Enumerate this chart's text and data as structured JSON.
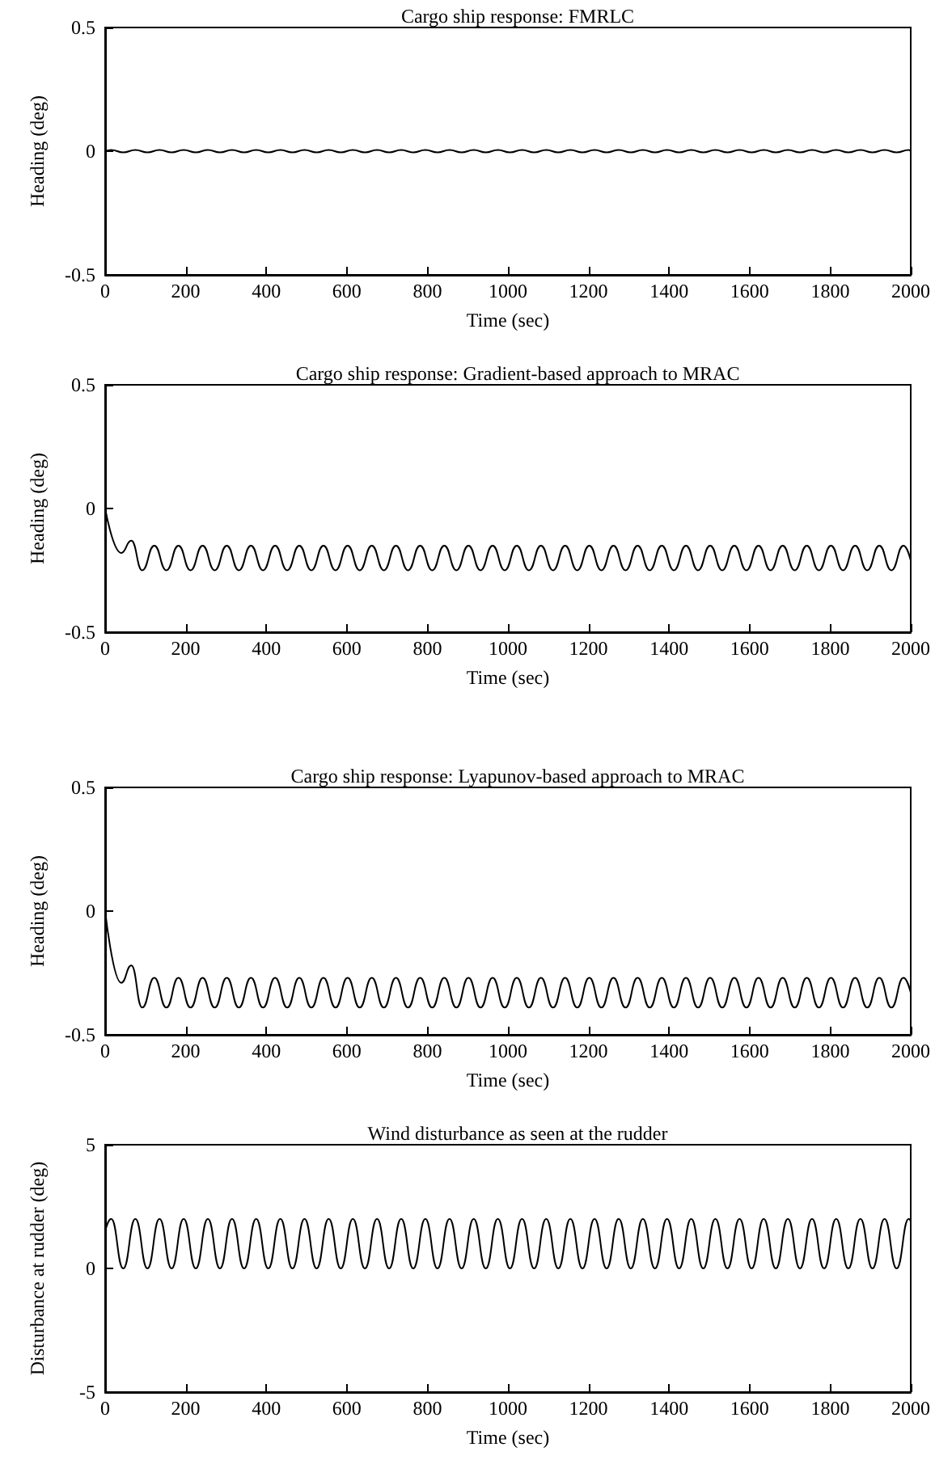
{
  "chart_data": [
    {
      "type": "line",
      "title": "Cargo ship response: FMRLC",
      "xlabel": "Time (sec)",
      "ylabel": "Heading (deg)",
      "color": "#000000",
      "marker": "none",
      "line_style": "solid",
      "x": [
        0,
        15,
        45,
        75,
        105,
        135,
        165,
        195,
        225,
        255,
        285,
        315,
        345,
        375,
        405,
        435,
        465,
        495,
        525,
        555,
        585,
        615,
        645,
        675,
        705,
        735,
        765,
        795,
        825,
        855,
        885,
        915,
        945,
        975,
        1005,
        1035,
        1065,
        1095,
        1125,
        1155,
        1185,
        1215,
        1245,
        1275,
        1305,
        1335,
        1365,
        1395,
        1425,
        1455,
        1485,
        1515,
        1545,
        1575,
        1605,
        1635,
        1665,
        1695,
        1725,
        1755,
        1785,
        1815,
        1845,
        1875,
        1905,
        1935,
        1965,
        1995,
        2000
      ],
      "values": [
        0,
        0.005,
        -0.005,
        0.005,
        -0.005,
        0.005,
        -0.005,
        0.005,
        -0.005,
        0.005,
        -0.005,
        0.005,
        -0.005,
        0.005,
        -0.005,
        0.005,
        -0.005,
        0.005,
        -0.005,
        0.005,
        -0.005,
        0.005,
        -0.005,
        0.005,
        -0.005,
        0.005,
        -0.005,
        0.005,
        -0.005,
        0.005,
        -0.005,
        0.005,
        -0.005,
        0.005,
        -0.005,
        0.005,
        -0.005,
        0.005,
        -0.005,
        0.005,
        -0.005,
        0.005,
        -0.005,
        0.005,
        -0.005,
        0.005,
        -0.005,
        0.005,
        -0.005,
        0.005,
        -0.005,
        0.005,
        -0.005,
        0.005,
        -0.005,
        0.005,
        -0.005,
        0.005,
        -0.005,
        0.005,
        -0.005,
        0.005,
        -0.005,
        0.005,
        -0.005,
        0.005,
        -0.005,
        0.005,
        0
      ],
      "xlim": [
        0,
        2000
      ],
      "xticks": [
        0,
        200,
        400,
        600,
        800,
        1000,
        1200,
        1400,
        1600,
        1800,
        2000
      ],
      "ylim": [
        -0.5,
        0.5
      ],
      "yticks": [
        -0.5,
        0,
        0.5
      ]
    },
    {
      "type": "line",
      "title": "Cargo ship response: Gradient-based approach to MRAC",
      "xlabel": "Time (sec)",
      "ylabel": "Heading (deg)",
      "color": "#000000",
      "marker": "none",
      "line_style": "solid",
      "x": [
        0,
        40,
        65,
        92,
        122,
        152,
        182,
        212,
        242,
        272,
        302,
        332,
        362,
        392,
        422,
        452,
        482,
        512,
        542,
        572,
        602,
        632,
        662,
        692,
        722,
        752,
        782,
        812,
        842,
        872,
        902,
        932,
        962,
        992,
        1022,
        1052,
        1082,
        1112,
        1142,
        1172,
        1202,
        1232,
        1262,
        1292,
        1322,
        1352,
        1382,
        1412,
        1442,
        1472,
        1502,
        1532,
        1562,
        1592,
        1622,
        1652,
        1682,
        1712,
        1742,
        1772,
        1802,
        1832,
        1862,
        1892,
        1922,
        1952,
        1982,
        2000
      ],
      "values": [
        0,
        -0.18,
        -0.13,
        -0.25,
        -0.15,
        -0.25,
        -0.15,
        -0.25,
        -0.15,
        -0.25,
        -0.15,
        -0.25,
        -0.15,
        -0.25,
        -0.15,
        -0.25,
        -0.15,
        -0.25,
        -0.15,
        -0.25,
        -0.15,
        -0.25,
        -0.15,
        -0.25,
        -0.15,
        -0.25,
        -0.15,
        -0.25,
        -0.15,
        -0.25,
        -0.15,
        -0.25,
        -0.15,
        -0.25,
        -0.15,
        -0.25,
        -0.15,
        -0.25,
        -0.15,
        -0.25,
        -0.15,
        -0.25,
        -0.15,
        -0.25,
        -0.15,
        -0.25,
        -0.15,
        -0.25,
        -0.15,
        -0.25,
        -0.15,
        -0.25,
        -0.15,
        -0.25,
        -0.15,
        -0.25,
        -0.15,
        -0.25,
        -0.15,
        -0.25,
        -0.15,
        -0.25,
        -0.15,
        -0.25,
        -0.15,
        -0.25,
        -0.15,
        -0.21
      ],
      "xlim": [
        0,
        2000
      ],
      "xticks": [
        0,
        200,
        400,
        600,
        800,
        1000,
        1200,
        1400,
        1600,
        1800,
        2000
      ],
      "ylim": [
        -0.5,
        0.5
      ],
      "yticks": [
        -0.5,
        0,
        0.5
      ]
    },
    {
      "type": "line",
      "title": "Cargo ship response: Lyapunov-based approach to MRAC",
      "xlabel": "Time (sec)",
      "ylabel": "Heading (deg)",
      "color": "#000000",
      "marker": "none",
      "line_style": "solid",
      "x": [
        0,
        40,
        65,
        92,
        122,
        152,
        182,
        212,
        242,
        272,
        302,
        332,
        362,
        392,
        422,
        452,
        482,
        512,
        542,
        572,
        602,
        632,
        662,
        692,
        722,
        752,
        782,
        812,
        842,
        872,
        902,
        932,
        962,
        992,
        1022,
        1052,
        1082,
        1112,
        1142,
        1172,
        1202,
        1232,
        1262,
        1292,
        1322,
        1352,
        1382,
        1412,
        1442,
        1472,
        1502,
        1532,
        1562,
        1592,
        1622,
        1652,
        1682,
        1712,
        1742,
        1772,
        1802,
        1832,
        1862,
        1892,
        1922,
        1952,
        1982,
        2000
      ],
      "values": [
        0,
        -0.29,
        -0.22,
        -0.39,
        -0.27,
        -0.39,
        -0.27,
        -0.39,
        -0.27,
        -0.39,
        -0.27,
        -0.39,
        -0.27,
        -0.39,
        -0.27,
        -0.39,
        -0.27,
        -0.39,
        -0.27,
        -0.39,
        -0.27,
        -0.39,
        -0.27,
        -0.39,
        -0.27,
        -0.39,
        -0.27,
        -0.39,
        -0.27,
        -0.39,
        -0.27,
        -0.39,
        -0.27,
        -0.39,
        -0.27,
        -0.39,
        -0.27,
        -0.39,
        -0.27,
        -0.39,
        -0.27,
        -0.39,
        -0.27,
        -0.39,
        -0.27,
        -0.39,
        -0.27,
        -0.39,
        -0.27,
        -0.39,
        -0.27,
        -0.39,
        -0.27,
        -0.39,
        -0.27,
        -0.39,
        -0.27,
        -0.39,
        -0.27,
        -0.39,
        -0.27,
        -0.39,
        -0.27,
        -0.39,
        -0.27,
        -0.39,
        -0.27,
        -0.33
      ],
      "xlim": [
        0,
        2000
      ],
      "xticks": [
        0,
        200,
        400,
        600,
        800,
        1000,
        1200,
        1400,
        1600,
        1800,
        2000
      ],
      "ylim": [
        -0.5,
        0.5
      ],
      "yticks": [
        -0.5,
        0,
        0.5
      ]
    },
    {
      "type": "line",
      "title": "Wind disturbance as seen at the rudder",
      "xlabel": "Time (sec)",
      "ylabel": "Disturbance at rudder (deg)",
      "color": "#000000",
      "marker": "none",
      "line_style": "solid",
      "x": [
        0,
        15,
        45,
        75,
        105,
        135,
        165,
        195,
        225,
        255,
        285,
        315,
        345,
        375,
        405,
        435,
        465,
        495,
        525,
        555,
        585,
        615,
        645,
        675,
        705,
        735,
        765,
        795,
        825,
        855,
        885,
        915,
        945,
        975,
        1005,
        1035,
        1065,
        1095,
        1125,
        1155,
        1185,
        1215,
        1245,
        1275,
        1305,
        1335,
        1365,
        1395,
        1425,
        1455,
        1485,
        1515,
        1545,
        1575,
        1605,
        1635,
        1665,
        1695,
        1725,
        1755,
        1785,
        1815,
        1845,
        1875,
        1905,
        1935,
        1965,
        1995,
        2000
      ],
      "values": [
        1.5,
        2,
        0,
        2,
        0,
        2,
        0,
        2,
        0,
        2,
        0,
        2,
        0,
        2,
        0,
        2,
        0,
        2,
        0,
        2,
        0,
        2,
        0,
        2,
        0,
        2,
        0,
        2,
        0,
        2,
        0,
        2,
        0,
        2,
        0,
        2,
        0,
        2,
        0,
        2,
        0,
        2,
        0,
        2,
        0,
        2,
        0,
        2,
        0,
        2,
        0,
        2,
        0,
        2,
        0,
        2,
        0,
        2,
        0,
        2,
        0,
        2,
        0,
        2,
        0,
        2,
        0,
        2,
        1.9
      ],
      "xlim": [
        0,
        2000
      ],
      "xticks": [
        0,
        200,
        400,
        600,
        800,
        1000,
        1200,
        1400,
        1600,
        1800,
        2000
      ],
      "ylim": [
        -5,
        5
      ],
      "yticks": [
        -5,
        0,
        5
      ]
    }
  ]
}
